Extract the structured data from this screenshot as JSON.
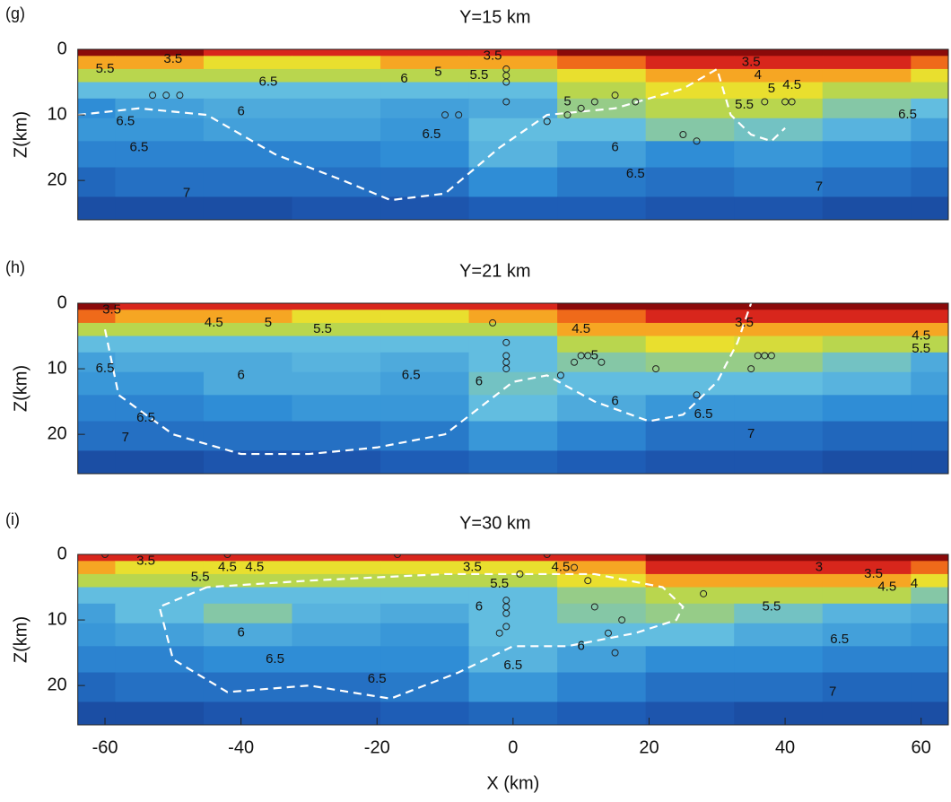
{
  "chart_data": [
    {
      "type": "velocity-section",
      "panel": "(g)",
      "title": "Y=15 km",
      "ylabel": "Z(km)",
      "xlim": [
        -64,
        64
      ],
      "ylim": [
        0,
        26
      ],
      "yticks": [
        0,
        10,
        20
      ],
      "colorscale": [
        [
          3,
          "#8b0a0a"
        ],
        [
          3.5,
          "#d8261c"
        ],
        [
          4,
          "#ef6a1a"
        ],
        [
          4.5,
          "#f6a623"
        ],
        [
          5,
          "#e9df2e"
        ],
        [
          5.5,
          "#b9d64e"
        ],
        [
          6,
          "#62bde0"
        ],
        [
          6.5,
          "#2f8dd6"
        ],
        [
          7,
          "#1e5db6"
        ],
        [
          7.5,
          "#17378a"
        ]
      ],
      "x": [
        -65,
        -52,
        -39,
        -26,
        -13,
        0,
        13,
        26,
        39,
        52,
        65
      ],
      "z": [
        0,
        2,
        4,
        6,
        9,
        12,
        16,
        20,
        25
      ],
      "velocity": [
        [
          3,
          3,
          3.5,
          3.5,
          3.5,
          3.5,
          3,
          3,
          3,
          3,
          3
        ],
        [
          4.5,
          4.5,
          5,
          5,
          4.5,
          4.5,
          4,
          3.5,
          3.5,
          3.5,
          4
        ],
        [
          5.5,
          5.5,
          5.5,
          5.5,
          5.5,
          5.5,
          5,
          4.5,
          4.5,
          4.5,
          5
        ],
        [
          6,
          6,
          6,
          6,
          6,
          6,
          5.5,
          5,
          5,
          5.5,
          5.5
        ],
        [
          6.5,
          6.3,
          6.2,
          6.2,
          6.3,
          6.2,
          5.7,
          5.5,
          5.5,
          5.8,
          6
        ],
        [
          6.4,
          6.4,
          6.3,
          6.3,
          6.4,
          6,
          6,
          5.8,
          5.9,
          6.1,
          6.3
        ],
        [
          6.6,
          6.6,
          6.6,
          6.6,
          6.5,
          6.1,
          6.3,
          6.5,
          6.4,
          6.5,
          6.6
        ],
        [
          6.9,
          6.8,
          6.8,
          6.8,
          6.8,
          6.5,
          6.7,
          6.8,
          6.7,
          6.8,
          6.9
        ],
        [
          7.2,
          7.2,
          7.2,
          7.1,
          7.1,
          7,
          7,
          7.1,
          7.1,
          7.2,
          7.2
        ]
      ],
      "contour_labels": [
        {
          "x": -60,
          "z": 3,
          "value": 5.5
        },
        {
          "x": -50,
          "z": 1.5,
          "value": 3.5
        },
        {
          "x": -36,
          "z": 5,
          "value": 6.5
        },
        {
          "x": -57,
          "z": 11,
          "value": 6.5
        },
        {
          "x": -40,
          "z": 9.5,
          "value": 6
        },
        {
          "x": -55,
          "z": 15,
          "value": 6.5
        },
        {
          "x": -48,
          "z": 22,
          "value": 7
        },
        {
          "x": -12,
          "z": 13,
          "value": 6.5
        },
        {
          "x": -16,
          "z": 4.5,
          "value": 6
        },
        {
          "x": -11,
          "z": 3.5,
          "value": 5
        },
        {
          "x": -5,
          "z": 4,
          "value": 5.5
        },
        {
          "x": -3,
          "z": 1,
          "value": 3.5
        },
        {
          "x": 8,
          "z": 8,
          "value": 5
        },
        {
          "x": 15,
          "z": 15,
          "value": 6
        },
        {
          "x": 18,
          "z": 19,
          "value": 6.5
        },
        {
          "x": 35,
          "z": 2,
          "value": 3.5
        },
        {
          "x": 36,
          "z": 4,
          "value": 4
        },
        {
          "x": 41,
          "z": 5.5,
          "value": 4.5
        },
        {
          "x": 34,
          "z": 8.5,
          "value": 5.5
        },
        {
          "x": 38,
          "z": 6,
          "value": 5
        },
        {
          "x": 45,
          "z": 21,
          "value": 7
        },
        {
          "x": 58,
          "z": 10,
          "value": 6.5
        }
      ],
      "events": {
        "x": [
          -53,
          -51,
          -49,
          -10,
          -8,
          -1,
          -1,
          -1,
          -1,
          5,
          8,
          10,
          12,
          15,
          18,
          25,
          27,
          37,
          40,
          41
        ],
        "z": [
          7,
          7,
          7,
          10,
          10,
          3,
          4,
          5,
          8,
          11,
          10,
          9,
          8,
          7,
          8,
          13,
          14,
          8,
          8,
          8
        ]
      },
      "dashed_curve": {
        "x": [
          -64,
          -55,
          -45,
          -35,
          -25,
          -18,
          -10,
          -2,
          5,
          15,
          25,
          30,
          32,
          35,
          38,
          40
        ],
        "z": [
          10,
          9,
          10,
          16,
          20,
          23,
          22,
          15,
          10,
          9,
          6,
          3,
          10,
          13,
          14,
          12
        ]
      }
    },
    {
      "type": "velocity-section",
      "panel": "(h)",
      "title": "Y=21 km",
      "ylabel": "Z(km)",
      "xlim": [
        -64,
        64
      ],
      "ylim": [
        0,
        26
      ],
      "yticks": [
        0,
        10,
        20
      ],
      "colorscale": [
        [
          3,
          "#8b0a0a"
        ],
        [
          3.5,
          "#d8261c"
        ],
        [
          4,
          "#ef6a1a"
        ],
        [
          4.5,
          "#f6a623"
        ],
        [
          5,
          "#e9df2e"
        ],
        [
          5.5,
          "#b9d64e"
        ],
        [
          6,
          "#62bde0"
        ],
        [
          6.5,
          "#2f8dd6"
        ],
        [
          7,
          "#1e5db6"
        ],
        [
          7.5,
          "#17378a"
        ]
      ],
      "x": [
        -65,
        -52,
        -39,
        -26,
        -13,
        0,
        13,
        26,
        39,
        52,
        65
      ],
      "z": [
        0,
        2,
        4,
        6,
        9,
        12,
        16,
        20,
        25
      ],
      "velocity": [
        [
          3,
          3.5,
          3.5,
          3.5,
          3.5,
          3.5,
          3,
          3,
          3,
          2.8,
          2.8
        ],
        [
          4,
          4.5,
          4.5,
          5,
          5,
          4.5,
          4,
          3.5,
          3.5,
          3.5,
          3.5
        ],
        [
          5.5,
          5.5,
          5.5,
          5.5,
          5.5,
          5.5,
          4.5,
          4.5,
          4.5,
          4.5,
          4.5
        ],
        [
          6,
          6,
          6,
          6,
          6,
          6,
          5.5,
          5,
          5.2,
          5.5,
          5.5
        ],
        [
          6.3,
          6.2,
          6.2,
          6.1,
          6.2,
          6,
          5.8,
          5.7,
          5.7,
          5.9,
          6.2
        ],
        [
          6.4,
          6.4,
          6.2,
          6.2,
          6.3,
          5.9,
          6,
          6,
          6,
          6.1,
          6.3
        ],
        [
          6.6,
          6.6,
          6.5,
          6.4,
          6.4,
          6,
          6.2,
          6.4,
          6.4,
          6.5,
          6.5
        ],
        [
          6.8,
          6.8,
          6.8,
          6.8,
          6.7,
          6.4,
          6.6,
          6.8,
          6.8,
          6.9,
          6.9
        ],
        [
          7.2,
          7.2,
          7.1,
          7.1,
          7,
          6.9,
          7,
          7.1,
          7.1,
          7.2,
          7.2
        ]
      ],
      "contour_labels": [
        {
          "x": -59,
          "z": 1,
          "value": 3.5
        },
        {
          "x": -44,
          "z": 3,
          "value": 4.5
        },
        {
          "x": -36,
          "z": 3,
          "value": 5
        },
        {
          "x": -28,
          "z": 4,
          "value": 5.5
        },
        {
          "x": -60,
          "z": 10,
          "value": 6.5
        },
        {
          "x": -40,
          "z": 11,
          "value": 6
        },
        {
          "x": -54,
          "z": 17.5,
          "value": 6.5
        },
        {
          "x": -57,
          "z": 20.5,
          "value": 7
        },
        {
          "x": -15,
          "z": 11,
          "value": 6.5
        },
        {
          "x": -5,
          "z": 12,
          "value": 6
        },
        {
          "x": 10,
          "z": 4,
          "value": 4.5
        },
        {
          "x": 12,
          "z": 8,
          "value": 5
        },
        {
          "x": 15,
          "z": 15,
          "value": 6
        },
        {
          "x": 28,
          "z": 17,
          "value": 6.5
        },
        {
          "x": 35,
          "z": 20,
          "value": 7
        },
        {
          "x": 34,
          "z": 3,
          "value": 3.5
        },
        {
          "x": 60,
          "z": 5,
          "value": 4.5
        },
        {
          "x": 60,
          "z": 7,
          "value": 5.5
        }
      ],
      "events": {
        "x": [
          -3,
          -1,
          -1,
          -1,
          -1,
          7,
          9,
          10,
          11,
          13,
          21,
          27,
          35,
          36,
          37,
          38
        ],
        "z": [
          3,
          6,
          8,
          9,
          10,
          11,
          9,
          8,
          8,
          9,
          10,
          14,
          10,
          8,
          8,
          8
        ]
      },
      "dashed_curve": {
        "x": [
          -60,
          -58,
          -50,
          -40,
          -30,
          -20,
          -10,
          -5,
          0,
          5,
          12,
          20,
          25,
          30,
          33,
          35
        ],
        "z": [
          4,
          14,
          20,
          23,
          23,
          22,
          20,
          16,
          12,
          11,
          15,
          18,
          17,
          12,
          6,
          0
        ]
      }
    },
    {
      "type": "velocity-section",
      "panel": "(i)",
      "title": "Y=30 km",
      "ylabel": "Z(km)",
      "xlabel": "X (km)",
      "xlim": [
        -64,
        64
      ],
      "ylim": [
        0,
        26
      ],
      "yticks": [
        0,
        10,
        20
      ],
      "xticks": [
        -60,
        -40,
        -20,
        0,
        20,
        40,
        60
      ],
      "colorscale": [
        [
          3,
          "#8b0a0a"
        ],
        [
          3.5,
          "#d8261c"
        ],
        [
          4,
          "#ef6a1a"
        ],
        [
          4.5,
          "#f6a623"
        ],
        [
          5,
          "#e9df2e"
        ],
        [
          5.5,
          "#b9d64e"
        ],
        [
          6,
          "#62bde0"
        ],
        [
          6.5,
          "#2f8dd6"
        ],
        [
          7,
          "#1e5db6"
        ],
        [
          7.5,
          "#17378a"
        ]
      ],
      "x": [
        -65,
        -52,
        -39,
        -26,
        -13,
        0,
        13,
        26,
        39,
        52,
        65
      ],
      "z": [
        0,
        2,
        4,
        6,
        9,
        12,
        16,
        20,
        25
      ],
      "velocity": [
        [
          3.5,
          3.5,
          3.5,
          3.5,
          3.5,
          3.5,
          3.5,
          3,
          2.8,
          2.8,
          2.8
        ],
        [
          4.5,
          5,
          5,
          5,
          5,
          5,
          4.5,
          3.5,
          3.5,
          3.5,
          4
        ],
        [
          5.5,
          5.5,
          5.5,
          5.5,
          5.5,
          5.5,
          5,
          4.5,
          4.5,
          4.5,
          5
        ],
        [
          6,
          6,
          6,
          6,
          6,
          6,
          5.7,
          5.5,
          5.5,
          5.5,
          5.8
        ],
        [
          6.3,
          6,
          5.8,
          6.1,
          6.2,
          6,
          5.8,
          5.7,
          5.9,
          6.1,
          6.2
        ],
        [
          6.4,
          6.3,
          6.2,
          6.3,
          6.4,
          6,
          6,
          6,
          6.2,
          6.3,
          6.4
        ],
        [
          6.6,
          6.6,
          6.5,
          6.5,
          6.5,
          6.1,
          6.3,
          6.5,
          6.5,
          6.6,
          6.6
        ],
        [
          6.9,
          6.8,
          6.8,
          6.8,
          6.7,
          6.4,
          6.6,
          6.8,
          6.8,
          6.9,
          6.9
        ],
        [
          7.2,
          7.2,
          7.1,
          7.1,
          7,
          6.9,
          7,
          7.1,
          7.2,
          7.2,
          7.2
        ]
      ],
      "contour_labels": [
        {
          "x": -54,
          "z": 1,
          "value": 3.5
        },
        {
          "x": -46,
          "z": 3.5,
          "value": 5.5
        },
        {
          "x": -42,
          "z": 2,
          "value": 4.5
        },
        {
          "x": -38,
          "z": 2,
          "value": 4.5
        },
        {
          "x": -40,
          "z": 12,
          "value": 6
        },
        {
          "x": -35,
          "z": 16,
          "value": 6.5
        },
        {
          "x": -20,
          "z": 19,
          "value": 6.5
        },
        {
          "x": -6,
          "z": 2,
          "value": 3.5
        },
        {
          "x": -2,
          "z": 4.5,
          "value": 5.5
        },
        {
          "x": 7,
          "z": 2,
          "value": 4.5
        },
        {
          "x": 10,
          "z": 14,
          "value": 6
        },
        {
          "x": -5,
          "z": 8,
          "value": 6
        },
        {
          "x": 0,
          "z": 17,
          "value": 6.5
        },
        {
          "x": 45,
          "z": 2,
          "value": 3
        },
        {
          "x": 53,
          "z": 3,
          "value": 3.5
        },
        {
          "x": 55,
          "z": 5,
          "value": 4.5
        },
        {
          "x": 59,
          "z": 4.5,
          "value": 4
        },
        {
          "x": 38,
          "z": 8,
          "value": 5.5
        },
        {
          "x": 48,
          "z": 13,
          "value": 6.5
        },
        {
          "x": 47,
          "z": 21,
          "value": 7
        }
      ],
      "events": {
        "x": [
          -60,
          -42,
          -17,
          -1,
          -1,
          -1,
          -1,
          -2,
          1,
          5,
          9,
          11,
          12,
          14,
          15,
          16,
          28
        ],
        "z": [
          0,
          0,
          0,
          7,
          8,
          9,
          11,
          12,
          3,
          0,
          2,
          4,
          8,
          12,
          15,
          10,
          6
        ]
      },
      "dashed_curve": {
        "x": [
          -45,
          -52,
          -50,
          -42,
          -30,
          -18,
          -8,
          0,
          8,
          18,
          24,
          25,
          22,
          12,
          0,
          -10,
          -30,
          -45
        ],
        "z": [
          5,
          8,
          16,
          21,
          20,
          22,
          18,
          14,
          14,
          12,
          10,
          8,
          5,
          3,
          3,
          3,
          4,
          5
        ]
      }
    }
  ]
}
